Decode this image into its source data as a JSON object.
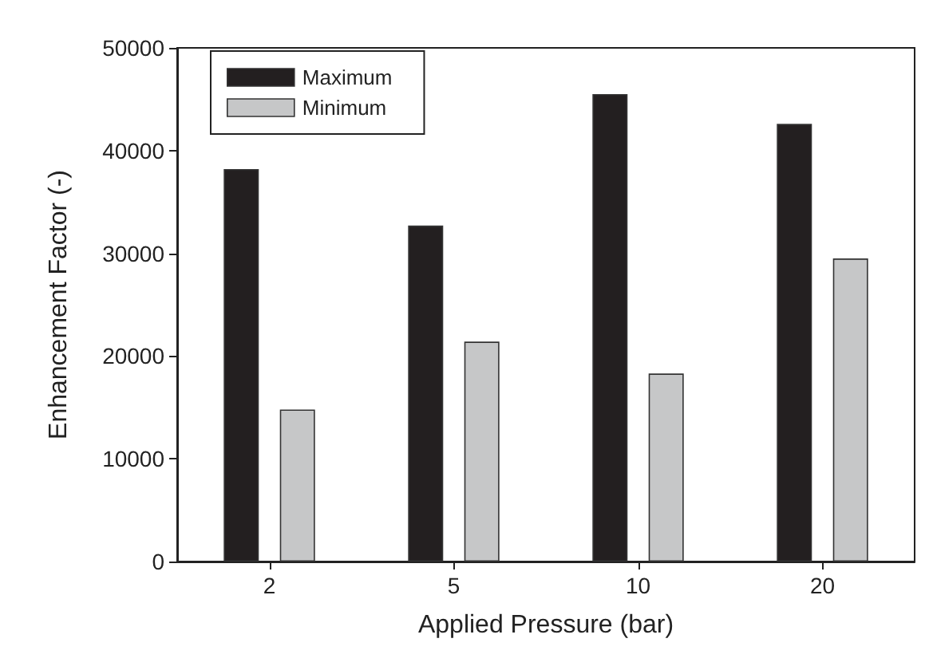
{
  "chart_data": {
    "type": "bar",
    "xlabel": "Applied Pressure (bar)",
    "ylabel": "Enhancement Factor (-)",
    "categories": [
      "2",
      "5",
      "10",
      "20"
    ],
    "series": [
      {
        "name": "Maximum",
        "color": "#231f20",
        "values": [
          38200,
          32700,
          45500,
          42600
        ]
      },
      {
        "name": "Minimum",
        "color": "#c6c7c8",
        "values": [
          14800,
          21400,
          18300,
          29500
        ]
      }
    ],
    "ylim": [
      0,
      50000
    ],
    "yticks": [
      0,
      10000,
      20000,
      30000,
      40000,
      50000
    ],
    "grid": false,
    "legend": "top left"
  }
}
